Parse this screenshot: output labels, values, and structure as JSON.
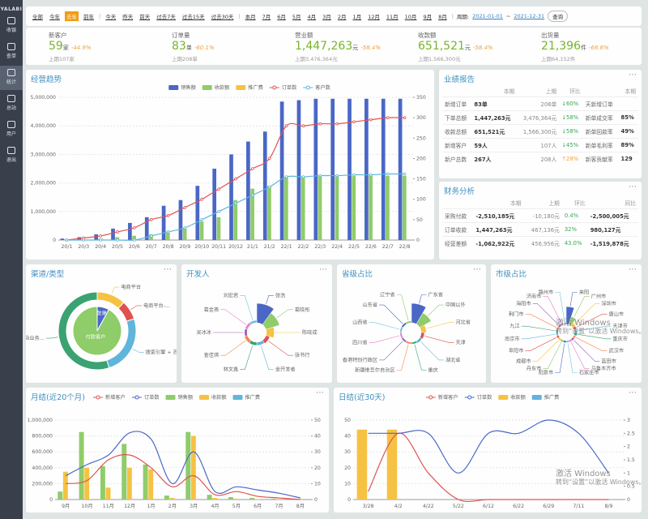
{
  "sidebar": {
    "logo": "YALABI",
    "items": [
      "收银",
      "查单",
      "统计",
      "总站",
      "用户",
      "退出"
    ],
    "active": "统计"
  },
  "filter": {
    "groups": [
      [
        "全部",
        "今年",
        "去年",
        "前年"
      ],
      [
        "今天",
        "昨天",
        "前天",
        "过去7天",
        "过去15天",
        "过去30天"
      ],
      [
        "本月",
        "7月",
        "6月",
        "5月",
        "4月",
        "3月",
        "2月",
        "1月",
        "12月",
        "11月",
        "10月",
        "9月",
        "8月"
      ]
    ],
    "active": "去年",
    "period_label": "周期:",
    "start": "2021-01-01",
    "sep": "~",
    "end": "2021-12-31",
    "query": "查询"
  },
  "kpis": [
    {
      "label": "新客户",
      "value": "59",
      "unit": "家",
      "change": "-44.9%",
      "prev": "上期107家"
    },
    {
      "label": "订单量",
      "value": "83",
      "unit": "单",
      "change": "-60.1%",
      "prev": "上期208单"
    },
    {
      "label": "营业额",
      "value": "1,447,263",
      "unit": "元",
      "change": "-58.4%",
      "prev": "上期3,476,364元"
    },
    {
      "label": "收款额",
      "value": "651,521",
      "unit": "元",
      "change": "-58.4%",
      "prev": "上期1,566,300元"
    },
    {
      "label": "出货量",
      "value": "21,396",
      "unit": "件",
      "change": "-66.6%",
      "prev": "上期64,152件"
    }
  ],
  "trend": {
    "title": "经营趋势",
    "type": "bar_line",
    "markers": true,
    "categories": [
      "20/1",
      "20/3",
      "20/4",
      "20/5",
      "20/6",
      "20/7",
      "20/8",
      "20/9",
      "20/10",
      "20/11",
      "20/12",
      "21/1",
      "21/2",
      "22/1",
      "22/2",
      "22/3",
      "22/4",
      "22/5",
      "22/6",
      "22/7",
      "22/8"
    ],
    "ylim": [
      0,
      5000000
    ],
    "yticks": [
      0,
      {
        "value": 1000000,
        "label": "1,000,000"
      },
      {
        "value": 2000000,
        "label": "2,000,000"
      },
      {
        "value": 3000000,
        "label": "3,000,000"
      },
      {
        "value": 4000000,
        "label": "4,000,000"
      },
      {
        "value": 5000000,
        "label": "5,000,000"
      }
    ],
    "y2lim": [
      0,
      350
    ],
    "y2ticks": [
      0,
      50,
      100,
      150,
      200,
      250,
      300,
      350
    ],
    "series": [
      {
        "name": "销售额",
        "type": "bar",
        "color": "#4a67c6",
        "values": [
          50000,
          100000,
          200000,
          400000,
          600000,
          800000,
          1200000,
          1400000,
          1900000,
          2500000,
          3000000,
          3450000,
          3800000,
          4850000,
          4900000,
          4950000,
          4950000,
          4950000,
          4950000,
          4950000,
          4950000
        ]
      },
      {
        "name": "收款额",
        "type": "bar",
        "color": "#8fcc6a",
        "values": [
          0,
          20000,
          50000,
          100000,
          150000,
          200000,
          300000,
          400000,
          650000,
          800000,
          1400000,
          1800000,
          1900000,
          2200000,
          2200000,
          2230000,
          2230000,
          2240000,
          2250000,
          2250000,
          2250000
        ]
      },
      {
        "name": "推广费",
        "type": "bar",
        "color": "#f6c244",
        "values": [
          0,
          0,
          0,
          0,
          0,
          0,
          0,
          0,
          0,
          0,
          0,
          0,
          0,
          0,
          0,
          0,
          0,
          0,
          0,
          0,
          0
        ]
      },
      {
        "name": "订单数",
        "type": "line",
        "axis": "y2",
        "color": "#e0524f",
        "values": [
          0,
          5,
          10,
          20,
          30,
          50,
          60,
          80,
          100,
          125,
          150,
          175,
          200,
          280,
          280,
          285,
          285,
          290,
          295,
          300,
          300
        ]
      },
      {
        "name": "客户数",
        "type": "line",
        "axis": "y2",
        "color": "#5fb5dc",
        "values": [
          0,
          0,
          0,
          0,
          0,
          10,
          20,
          30,
          50,
          70,
          90,
          110,
          130,
          155,
          155,
          158,
          158,
          160,
          160,
          162,
          162
        ]
      }
    ]
  },
  "report": {
    "title": "业绩报告",
    "head": [
      "本期",
      "上期",
      "环比"
    ],
    "side_head": "本期",
    "rows": [
      {
        "label": "新增订单",
        "cur": "83单",
        "prev": "208单",
        "ratio": "↓60%",
        "up": false,
        "side": "天新增订单"
      },
      {
        "label": "下单总额",
        "cur": "1,447,263元",
        "prev": "3,476,364元",
        "ratio": "↓58%",
        "up": false,
        "side": "新单成交率",
        "side_value": "85%"
      },
      {
        "label": "收款总额",
        "cur": "651,521元",
        "prev": "1,566,300元",
        "ratio": "↓58%",
        "up": false,
        "side": "新单回款率",
        "side_value": "49%"
      },
      {
        "label": "新增客户",
        "cur": "59人",
        "prev": "107人",
        "ratio": "↓45%",
        "up": false,
        "side": "新单毛利率",
        "side_value": "89%"
      },
      {
        "label": "新户总数",
        "cur": "267人",
        "prev": "208人",
        "ratio": "↑28%",
        "up": true,
        "side": "新客贡献率",
        "side_value": "129"
      }
    ]
  },
  "finance": {
    "title": "财务分析",
    "head": [
      "本期",
      "上期",
      "环比",
      "同比"
    ],
    "rows": [
      {
        "label": "采购付款",
        "cur": "-2,510,185元",
        "prev": "-10,180元",
        "ratio": "0.4%",
        "yoy": "-2,500,005元"
      },
      {
        "label": "订单收款",
        "cur": "1,447,263元",
        "prev": "467,136元",
        "ratio": "32%",
        "yoy": "980,127元"
      },
      {
        "label": "经营差额",
        "cur": "-1,062,922元",
        "prev": "456,956元",
        "ratio": "43.0%",
        "yoy": "-1,519,878元"
      }
    ]
  },
  "channel": {
    "title": "渠道/类型",
    "type": "donut",
    "outer": {
      "labels": [
        "电商平台",
        "电商平台-...",
        "搜索引擎 + 百...",
        "自业务..."
      ],
      "values": [
        12,
        8,
        25,
        55
      ],
      "colors": [
        "#f6c244",
        "#e0524f",
        "#5fb5dc",
        "#3ba272"
      ]
    },
    "inner": {
      "labels": [
        "付款渠道",
        "付款客户"
      ],
      "values": [
        8,
        92
      ],
      "colors": [
        "#4a67c6",
        "#8fcc6a"
      ]
    }
  },
  "developer": {
    "title": "开发人",
    "type": "rose",
    "labels": [
      "张浩",
      "葛晓彤",
      "陈晓成",
      "张书行",
      "金开发者",
      "林文鑫",
      "查佳琪",
      "吴冰冰",
      "葛金燕",
      "刘宏君"
    ],
    "values": [
      30,
      22,
      12,
      6,
      5,
      5,
      5,
      4,
      4,
      4
    ],
    "colors": [
      "#4a67c6",
      "#8fcc6a",
      "#f6c244",
      "#e0524f",
      "#5fb5dc",
      "#3ba272",
      "#fc8452",
      "#9a60b4",
      "#ea7ccc",
      "#73c0de"
    ]
  },
  "province": {
    "title": "省级占比",
    "type": "rose",
    "labels": [
      "广东省",
      "中国以外",
      "河北省",
      "天津",
      "湖北省",
      "重庆",
      "新疆维吾尔自治区",
      "香港特别行政区",
      "四川省",
      "山西省",
      "山东省",
      "辽宁省"
    ],
    "values": [
      30,
      20,
      8,
      5,
      4,
      3,
      3,
      3,
      3,
      3,
      3,
      3
    ],
    "colors": [
      "#4a67c6",
      "#8fcc6a",
      "#f6c244",
      "#e0524f",
      "#5fb5dc",
      "#3ba272",
      "#fc8452",
      "#9a60b4",
      "#ea7ccc",
      "#73c0de"
    ]
  },
  "city": {
    "title": "市级占比",
    "type": "rose",
    "labels": [
      "来阳",
      "广州市",
      "深圳市",
      "唐山市",
      "天津市",
      "重庆市",
      "武汉市",
      "蓝田市",
      "乌鲁木齐市",
      "石家庄市",
      "阳泉市",
      "丹东市",
      "成都市",
      "阜阳市",
      "南京市",
      "九江",
      "荆门市",
      "海阳市",
      "济南市",
      "赣州市"
    ],
    "values": [
      25,
      12,
      5,
      4,
      4,
      4,
      3,
      3,
      3,
      3,
      3,
      3,
      3,
      3,
      3,
      3,
      3,
      3,
      3,
      3
    ],
    "colors": [
      "#4a67c6",
      "#8fcc6a",
      "#f6c244",
      "#e0524f",
      "#5fb5dc",
      "#3ba272",
      "#fc8452",
      "#9a60b4",
      "#ea7ccc",
      "#73c0de"
    ]
  },
  "monthly": {
    "title": "月结(近20个月)",
    "type": "bar_line",
    "categories": [
      "9月",
      "10月",
      "11月",
      "12月",
      "1月",
      "2月",
      "3月",
      "4月",
      "5月",
      "6月",
      "7月",
      "8月"
    ],
    "ylim": [
      0,
      1000000
    ],
    "yticks": [
      0,
      {
        "value": 200000,
        "label": "200,000"
      },
      {
        "value": 400000,
        "label": "400,000"
      },
      {
        "value": 600000,
        "label": "600,000"
      },
      {
        "value": 800000,
        "label": "800,000"
      },
      {
        "value": 1000000,
        "label": "1,000,000"
      }
    ],
    "y2lim": [
      0,
      50
    ],
    "y2ticks": [
      0,
      10,
      20,
      30,
      40,
      50
    ],
    "series": [
      {
        "name": "新增客户",
        "type": "line",
        "axis": "y2",
        "color": "#e0524f",
        "values": [
          10,
          12,
          25,
          28,
          20,
          8,
          15,
          3,
          5,
          2,
          1,
          0
        ]
      },
      {
        "name": "订单数",
        "type": "line",
        "axis": "y2",
        "color": "#4a67c6",
        "values": [
          15,
          22,
          28,
          42,
          38,
          10,
          30,
          5,
          8,
          6,
          4,
          1
        ]
      },
      {
        "name": "销售额",
        "type": "bar",
        "color": "#8fcc6a",
        "values": [
          100000,
          850000,
          420000,
          700000,
          440000,
          50000,
          850000,
          60000,
          30000,
          20000,
          10000,
          5000
        ]
      },
      {
        "name": "收款额",
        "type": "bar",
        "color": "#f6c244",
        "values": [
          350000,
          400000,
          150000,
          400000,
          380000,
          20000,
          800000,
          20000,
          10000,
          5000,
          3000,
          2000
        ]
      },
      {
        "name": "推广费",
        "type": "bar",
        "color": "#5fb5dc",
        "values": [
          0,
          0,
          0,
          0,
          0,
          0,
          0,
          0,
          0,
          0,
          0,
          0
        ]
      }
    ]
  },
  "daily": {
    "title": "日结(近30天)",
    "type": "bar_line",
    "categories": [
      "3/28",
      "4/2",
      "4/22",
      "5/22",
      "6/12",
      "6/22",
      "6/29",
      "7/11",
      "8/9"
    ],
    "ylim": [
      0,
      50
    ],
    "yticks": [
      0,
      10,
      20,
      30,
      40,
      50
    ],
    "y2lim": [
      0,
      3
    ],
    "y2ticks": [
      0,
      0.5,
      1,
      1.5,
      2,
      2.5,
      3
    ],
    "series": [
      {
        "name": "新增客户",
        "type": "line",
        "axis": "y2",
        "color": "#e0524f",
        "values": [
          0.3,
          2.5,
          1,
          0,
          0,
          0,
          0,
          0,
          0
        ]
      },
      {
        "name": "订单数",
        "type": "line",
        "axis": "y2",
        "color": "#4a67c6",
        "values": [
          2.5,
          2.5,
          2.5,
          1,
          2.5,
          2.5,
          3,
          2.5,
          1
        ]
      },
      {
        "name": "收款额",
        "type": "bar",
        "color": "#f6c244",
        "values": [
          44,
          44,
          0,
          0,
          0,
          0,
          0,
          0,
          0
        ]
      },
      {
        "name": "推广费",
        "type": "bar",
        "color": "#5fb5dc",
        "values": [
          0,
          0,
          0,
          0,
          0,
          0,
          0,
          0,
          0
        ]
      }
    ]
  },
  "watermarks": [
    {
      "title": "激活 Windows",
      "text": "转到“设置”以激活 Windows。"
    },
    {
      "title": "激活 Windows",
      "text": "转到“设置”以激活 Windows。"
    }
  ]
}
